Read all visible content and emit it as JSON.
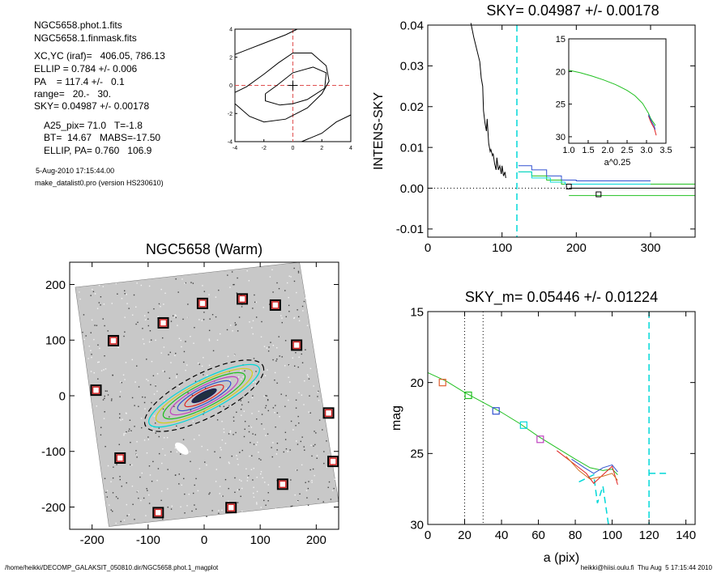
{
  "info": {
    "lines": [
      "NGC5658.phot.1.fits",
      "NGC5658.1.finmask.fits",
      "XC,YC (iraf)=   406.05, 786.13",
      "ELLIP = 0.784 +/- 0.006",
      "PA    = 117.4 +/-   0.1",
      "range=   20.-   30.",
      "SKY= 0.04987 +/- 0.00178",
      "A25_pix= 71.0   T=-1.8",
      "BT=  14.67   MABS=-17.50",
      "ELLIP, PA= 0.760   106.9"
    ],
    "date": "5-Aug-2010 17:15:44.00",
    "program": "make_datalist0.pro (version HS230610)"
  },
  "footer": {
    "path": "/home/heikki/DECOMP_GALAKSIT_050810.dir/NGC5658.phot.1_magplot",
    "user": "heikki@hiisi.oulu.fi  Thu Aug  5 17:15:44 2010"
  },
  "colors": {
    "cyan": "#00d8d8",
    "green": "#20c020",
    "red": "#e02020",
    "blue": "#3050d0",
    "magenta": "#c040c0",
    "yellow": "#d0d020",
    "orange": "#e06030"
  },
  "chart_data": [
    {
      "id": "contour",
      "type": "line",
      "title": "",
      "xlim": [
        -4,
        4
      ],
      "ylim": [
        -4,
        4
      ],
      "x_ticks": [
        -4,
        -2,
        0,
        2,
        4
      ],
      "y_ticks": [
        -4,
        -2,
        0,
        2,
        4
      ],
      "contours": [
        [
          [
            -4.0,
            -0.5
          ],
          [
            -3.2,
            -0.1
          ],
          [
            -2.0,
            0.8
          ],
          [
            -1.0,
            1.6
          ],
          [
            0.0,
            2.3
          ],
          [
            1.3,
            2.3
          ],
          [
            2.3,
            1.4
          ],
          [
            2.5,
            0.3
          ],
          [
            2.0,
            -0.6
          ],
          [
            1.0,
            -1.6
          ],
          [
            -0.5,
            -2.4
          ],
          [
            -2.0,
            -2.6
          ],
          [
            -3.0,
            -2.2
          ],
          [
            -4.0,
            -1.3
          ]
        ],
        [
          [
            -1.9,
            -0.6
          ],
          [
            -1.1,
            0.0
          ],
          [
            0.0,
            0.9
          ],
          [
            1.4,
            1.3
          ],
          [
            2.3,
            0.9
          ],
          [
            2.2,
            -0.2
          ],
          [
            1.0,
            -1.0
          ],
          [
            0.0,
            -1.3
          ],
          [
            -0.9,
            -1.4
          ],
          [
            -1.9,
            -1.1
          ],
          [
            -1.9,
            -0.6
          ]
        ],
        [
          [
            -4.0,
            2.2
          ],
          [
            -3.0,
            2.6
          ],
          [
            -2.0,
            3.0
          ],
          [
            -0.5,
            3.6
          ],
          [
            0.3,
            4.0
          ]
        ],
        [
          [
            0.6,
            -4.0
          ],
          [
            2.0,
            -3.4
          ],
          [
            3.0,
            -2.6
          ],
          [
            4.0,
            -2.1
          ]
        ]
      ],
      "cross": [
        0,
        0
      ]
    },
    {
      "id": "sky",
      "type": "line",
      "title": "SKY= 0.04987 +/- 0.00178",
      "xlabel": "",
      "ylabel": "INTENS-SKY",
      "xlim": [
        0,
        360
      ],
      "ylim": [
        -0.012,
        0.04
      ],
      "x_ticks": [
        0,
        100,
        200,
        300
      ],
      "y_ticks": [
        -0.01,
        0.0,
        0.01,
        0.02,
        0.03,
        0.04
      ],
      "y_tick_labels": [
        "-0.01",
        "0.00",
        "0.01",
        "0.02",
        "0.03",
        "0.04"
      ],
      "series": [
        {
          "color": "#000000",
          "points": [
            [
              58,
              0.0405
            ],
            [
              62,
              0.037
            ],
            [
              66,
              0.034
            ],
            [
              70,
              0.031
            ],
            [
              72,
              0.027
            ],
            [
              74,
              0.025
            ],
            [
              75,
              0.019
            ],
            [
              77,
              0.016
            ],
            [
              79,
              0.014
            ],
            [
              80,
              0.017
            ],
            [
              82,
              0.011
            ],
            [
              84,
              0.009
            ],
            [
              85,
              0.0095
            ],
            [
              87,
              0.008
            ],
            [
              88,
              0.0085
            ],
            [
              90,
              0.006
            ],
            [
              92,
              0.0045
            ],
            [
              93,
              0.0075
            ],
            [
              95,
              0.0045
            ],
            [
              97,
              0.0055
            ],
            [
              99,
              0.0035
            ],
            [
              100,
              0.0055
            ],
            [
              102,
              0.003
            ],
            [
              104,
              0.004
            ],
            [
              105,
              0.0025
            ]
          ]
        },
        {
          "color": "#3050d0",
          "points": [
            [
              122,
              0.0055
            ],
            [
              140,
              0.0055
            ],
            [
              140,
              0.0045
            ],
            [
              160,
              0.0045
            ],
            [
              160,
              0.003
            ],
            [
              180,
              0.003
            ],
            [
              180,
              0.002
            ],
            [
              200,
              0.002
            ],
            [
              200,
              0.0018
            ],
            [
              300,
              0.0018
            ]
          ]
        },
        {
          "color": "#20c020",
          "points": [
            [
              122,
              0.004
            ],
            [
              140,
              0.004
            ],
            [
              140,
              0.003
            ],
            [
              160,
              0.003
            ],
            [
              160,
              0.002
            ],
            [
              180,
              0.002
            ],
            [
              180,
              0.001
            ],
            [
              360,
              0.001
            ]
          ]
        },
        {
          "color": "#00d8d8",
          "points": [
            [
              122,
              0.004
            ],
            [
              140,
              0.004
            ],
            [
              140,
              0.0025
            ],
            [
              165,
              0.0025
            ],
            [
              165,
              0.0015
            ],
            [
              185,
              0.0015
            ],
            [
              185,
              0.001
            ],
            [
              300,
              0.001
            ]
          ]
        },
        {
          "color": "#20c020",
          "points": [
            [
              190,
              -0.0018
            ],
            [
              360,
              -0.0018
            ]
          ]
        },
        {
          "color": "#000000",
          "points": [
            [
              190,
              0.0
            ],
            [
              360,
              0.0
            ]
          ]
        }
      ],
      "squares": [
        [
          190,
          0.0004
        ],
        [
          230,
          -0.0015
        ]
      ],
      "vlines": [
        120
      ]
    },
    {
      "id": "inset",
      "type": "line",
      "title": "",
      "xlabel": "a^0.25",
      "xlim": [
        1.0,
        3.5
      ],
      "ylim": [
        15,
        31
      ],
      "x_ticks": [
        1.0,
        1.5,
        2.0,
        2.5,
        3.0,
        3.5
      ],
      "x_tick_labels": [
        "1.0",
        "1.5",
        "2.0",
        "2.5",
        "3.0",
        "3.5"
      ],
      "y_ticks": [
        15,
        20,
        25,
        30
      ],
      "reversed_y": true,
      "series": [
        {
          "color": "#20c020",
          "points": [
            [
              1.0,
              19.8
            ],
            [
              1.3,
              20.2
            ],
            [
              1.6,
              20.7
            ],
            [
              1.9,
              21.3
            ],
            [
              2.2,
              22.0
            ],
            [
              2.5,
              22.9
            ],
            [
              2.7,
              23.7
            ],
            [
              2.9,
              24.9
            ],
            [
              3.05,
              26.4
            ],
            [
              3.1,
              27.1
            ],
            [
              3.15,
              27.6
            ],
            [
              3.2,
              28.0
            ],
            [
              3.23,
              28.3
            ]
          ]
        },
        {
          "color": "#e02020",
          "points": [
            [
              3.05,
              26.8
            ],
            [
              3.1,
              27.6
            ],
            [
              3.15,
              28.2
            ],
            [
              3.2,
              28.7
            ],
            [
              3.25,
              29.8
            ]
          ]
        },
        {
          "color": "#3050d0",
          "points": [
            [
              3.05,
              26.6
            ],
            [
              3.1,
              27.3
            ],
            [
              3.15,
              27.9
            ],
            [
              3.2,
              28.4
            ],
            [
              3.22,
              28.9
            ]
          ]
        }
      ]
    },
    {
      "id": "image",
      "type": "scatter",
      "title": "NGC5658 (Warm)",
      "xlim": [
        -240,
        240
      ],
      "ylim": [
        -240,
        240
      ],
      "x_ticks": [
        -200,
        -100,
        0,
        100,
        200
      ],
      "y_ticks": [
        -200,
        -100,
        0,
        100,
        200
      ],
      "markers": [
        [
          -3,
          166
        ],
        [
          68,
          174
        ],
        [
          127,
          163
        ],
        [
          -73,
          131
        ],
        [
          -162,
          99
        ],
        [
          165,
          91
        ],
        [
          -193,
          10
        ],
        [
          222,
          -31
        ],
        [
          -150,
          -112
        ],
        [
          230,
          -118
        ],
        [
          140,
          -159
        ],
        [
          48,
          -201
        ],
        [
          -82,
          -210
        ]
      ],
      "ellipse": {
        "cx": 0,
        "cy": 0,
        "a": 110,
        "b": 28,
        "angle_deg": 27
      }
    },
    {
      "id": "sky_m",
      "type": "line",
      "title": "SKY_m=  0.05446 +/- 0.01224",
      "xlabel": "a (pix)",
      "ylabel": "mag",
      "xlim": [
        0,
        145
      ],
      "ylim": [
        15,
        30
      ],
      "x_ticks": [
        0,
        20,
        40,
        60,
        80,
        100,
        120,
        140
      ],
      "y_ticks": [
        15,
        20,
        25,
        30
      ],
      "reversed_y": true,
      "series": [
        {
          "color": "#20c020",
          "points": [
            [
              0,
              19.3
            ],
            [
              10,
              19.9
            ],
            [
              20,
              20.7
            ],
            [
              30,
              21.4
            ],
            [
              40,
              22.1
            ],
            [
              50,
              22.9
            ],
            [
              60,
              23.8
            ],
            [
              70,
              24.6
            ],
            [
              80,
              25.4
            ],
            [
              88,
              26.0
            ],
            [
              95,
              26.2
            ],
            [
              100,
              26.1
            ],
            [
              103,
              26.5
            ]
          ]
        },
        {
          "color": "#e02020",
          "points": [
            [
              70,
              24.8
            ],
            [
              80,
              25.8
            ],
            [
              86,
              26.4
            ],
            [
              90,
              27.1
            ],
            [
              95,
              26.5
            ],
            [
              100,
              25.9
            ],
            [
              103,
              27.2
            ]
          ]
        },
        {
          "color": "#d07020",
          "points": [
            [
              75,
              25.2
            ],
            [
              82,
              26.2
            ],
            [
              88,
              26.8
            ],
            [
              95,
              26.6
            ],
            [
              100,
              26.4
            ],
            [
              103,
              26.9
            ]
          ]
        },
        {
          "color": "#3050d0",
          "points": [
            [
              78,
              25.4
            ],
            [
              85,
              26.0
            ],
            [
              90,
              26.4
            ],
            [
              95,
              26.0
            ],
            [
              100,
              25.8
            ],
            [
              103,
              26.3
            ]
          ]
        }
      ],
      "squares": [
        [
          8,
          20.0,
          "#e06030"
        ],
        [
          22,
          20.9,
          "#20c020"
        ],
        [
          37,
          22.0,
          "#3050d0"
        ],
        [
          52,
          23.0,
          "#00d8d8"
        ],
        [
          61,
          24.0,
          "#c040c0"
        ]
      ],
      "dotted_vlines": [
        20,
        30
      ],
      "cyan_vlines": [
        120
      ],
      "cyan_segments": [
        [
          [
            82,
            27.0
          ],
          [
            90,
            26.5
          ],
          [
            92,
            28.5
          ],
          [
            95,
            27.3
          ],
          [
            98,
            30.0
          ]
        ],
        [
          [
            120,
            26.4
          ],
          [
            130,
            26.4
          ]
        ]
      ]
    }
  ]
}
